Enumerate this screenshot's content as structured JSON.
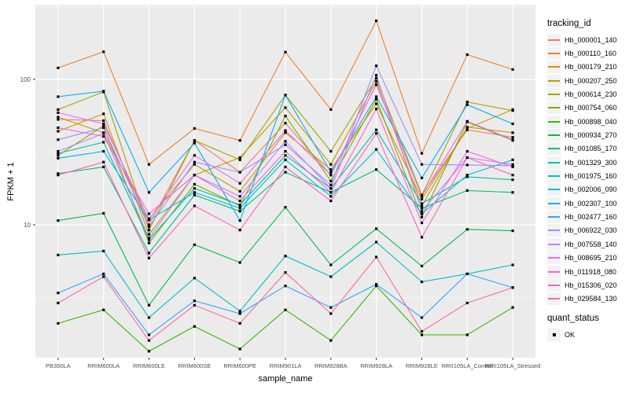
{
  "figure": {
    "bg": "#FFFFFF",
    "panel_bg": "#EBEBEB",
    "grid_color": "#FFFFFF",
    "tick_color": "#333333",
    "tick_label_color": "#4D4D4D",
    "point_color": "#000000"
  },
  "legend": {
    "tracking_title": "tracking_id",
    "quant_title": "quant_status",
    "quant_value": "OK",
    "key_bg": "#F2F2F2"
  },
  "chart_data": {
    "type": "line",
    "title": "",
    "xlabel": "sample_name",
    "ylabel": "FPKM + 1",
    "y_scale": "log10",
    "ylim": [
      1.2,
      326
    ],
    "legend_position": "right",
    "grid": true,
    "point_shape": "filled-black-square",
    "y_ticks": [
      {
        "value": 100,
        "label": "100"
      },
      {
        "value": 10,
        "label": "10"
      }
    ],
    "y_minor": [
      3.162,
      31.62,
      316.2
    ],
    "categories": [
      "PB350LA",
      "RRIM600LA",
      "RRIM600LE",
      "RRIM600SE",
      "RRIM600PE",
      "RRIM901LA",
      "RRIM928BA",
      "RRIM928LA",
      "RRIM928LE",
      "RRII105LA_Control",
      "RRII105LA_Stressed"
    ],
    "series": [
      {
        "name": "Hb_000001_140",
        "color": "#F8766D",
        "values": [
          53,
          52,
          10,
          38,
          23,
          50,
          22,
          92,
          16,
          45,
          40
        ]
      },
      {
        "name": "Hb_000110_160",
        "color": "#EA8331",
        "values": [
          120,
          155,
          26,
          46,
          38,
          154,
          62,
          253,
          31,
          148,
          117
        ]
      },
      {
        "name": "Hb_000179_210",
        "color": "#D89000",
        "values": [
          55,
          43,
          11,
          26,
          17,
          43,
          24,
          68,
          15,
          46,
          62
        ]
      },
      {
        "name": "Hb_000207_250",
        "color": "#C09B00",
        "values": [
          44,
          58,
          8.6,
          22,
          29,
          64,
          26,
          97,
          13.5,
          47,
          43
        ]
      },
      {
        "name": "Hb_000614_230",
        "color": "#A3A500",
        "values": [
          62,
          82,
          9.2,
          38,
          28,
          78,
          32,
          102,
          16,
          70,
          61
        ]
      },
      {
        "name": "Hb_000754_060",
        "color": "#7CAE00",
        "values": [
          30,
          48,
          7.5,
          19,
          13.5,
          56,
          20,
          73,
          11.3,
          51,
          38
        ]
      },
      {
        "name": "Hb_000898_040",
        "color": "#39B600",
        "values": [
          2.1,
          2.6,
          1.35,
          2.0,
          1.4,
          2.6,
          1.6,
          3.8,
          1.75,
          1.75,
          2.7
        ]
      },
      {
        "name": "Hb_000934_270",
        "color": "#00BB4E",
        "values": [
          10.7,
          12,
          2.8,
          7.3,
          5.5,
          13.2,
          5.3,
          9.4,
          5.2,
          9.3,
          9.1
        ]
      },
      {
        "name": "Hb_001085_170",
        "color": "#00BF7D",
        "values": [
          22.5,
          25,
          6.4,
          16,
          12.4,
          23,
          16.7,
          24,
          13,
          17.2,
          16.7
        ]
      },
      {
        "name": "Hb_001329_300",
        "color": "#00C1A3",
        "values": [
          31,
          37,
          7.9,
          17.8,
          13.7,
          30,
          17.8,
          45,
          14,
          21.4,
          20.4
        ]
      },
      {
        "name": "Hb_001975_160",
        "color": "#00BFC4",
        "values": [
          6.2,
          6.6,
          2.3,
          4.3,
          2.55,
          6.1,
          4.4,
          7.6,
          4.05,
          4.6,
          5.3
        ]
      },
      {
        "name": "Hb_002006_090",
        "color": "#00BAE0",
        "values": [
          28.7,
          32,
          10.8,
          16.7,
          13,
          28,
          15.7,
          33,
          11.9,
          22,
          28
        ]
      },
      {
        "name": "Hb_002307_100",
        "color": "#00B0F6",
        "values": [
          76,
          83,
          16.7,
          36.5,
          10.7,
          78,
          23,
          76,
          21,
          67,
          49.5
        ]
      },
      {
        "name": "Hb_002477_160",
        "color": "#35A2FF",
        "values": [
          3.4,
          4.6,
          1.75,
          3.0,
          2.45,
          3.8,
          2.7,
          3.9,
          2.3,
          4.6,
          3.7
        ]
      },
      {
        "name": "Hb_006922_030",
        "color": "#9590FF",
        "values": [
          38.5,
          46.5,
          9.7,
          27,
          23,
          35.5,
          18.8,
          124,
          26,
          25.8,
          25.5
        ]
      },
      {
        "name": "Hb_007558_140",
        "color": "#C77CFF",
        "values": [
          32,
          42.5,
          8.1,
          22,
          15.7,
          37.5,
          17.8,
          107,
          12.4,
          29,
          26
        ]
      },
      {
        "name": "Hb_008695_210",
        "color": "#E76BF3",
        "values": [
          59,
          49.5,
          10.8,
          30,
          19.3,
          44.5,
          22,
          92,
          15.7,
          51.5,
          38.5
        ]
      },
      {
        "name": "Hb_011918_080",
        "color": "#FA62DB",
        "values": [
          46.5,
          40.5,
          11.9,
          22,
          14.6,
          32,
          16.7,
          62.6,
          10.3,
          32,
          25
        ]
      },
      {
        "name": "Hb_015306_020",
        "color": "#FF62BC",
        "values": [
          22,
          27,
          5.9,
          13.5,
          9.2,
          25,
          14.6,
          42.5,
          8.2,
          29,
          22
        ]
      },
      {
        "name": "Hb_029584_130",
        "color": "#FF6A98",
        "values": [
          2.9,
          4.4,
          1.6,
          2.8,
          2.1,
          4.7,
          2.45,
          6.0,
          1.85,
          2.9,
          3.7
        ]
      }
    ]
  }
}
